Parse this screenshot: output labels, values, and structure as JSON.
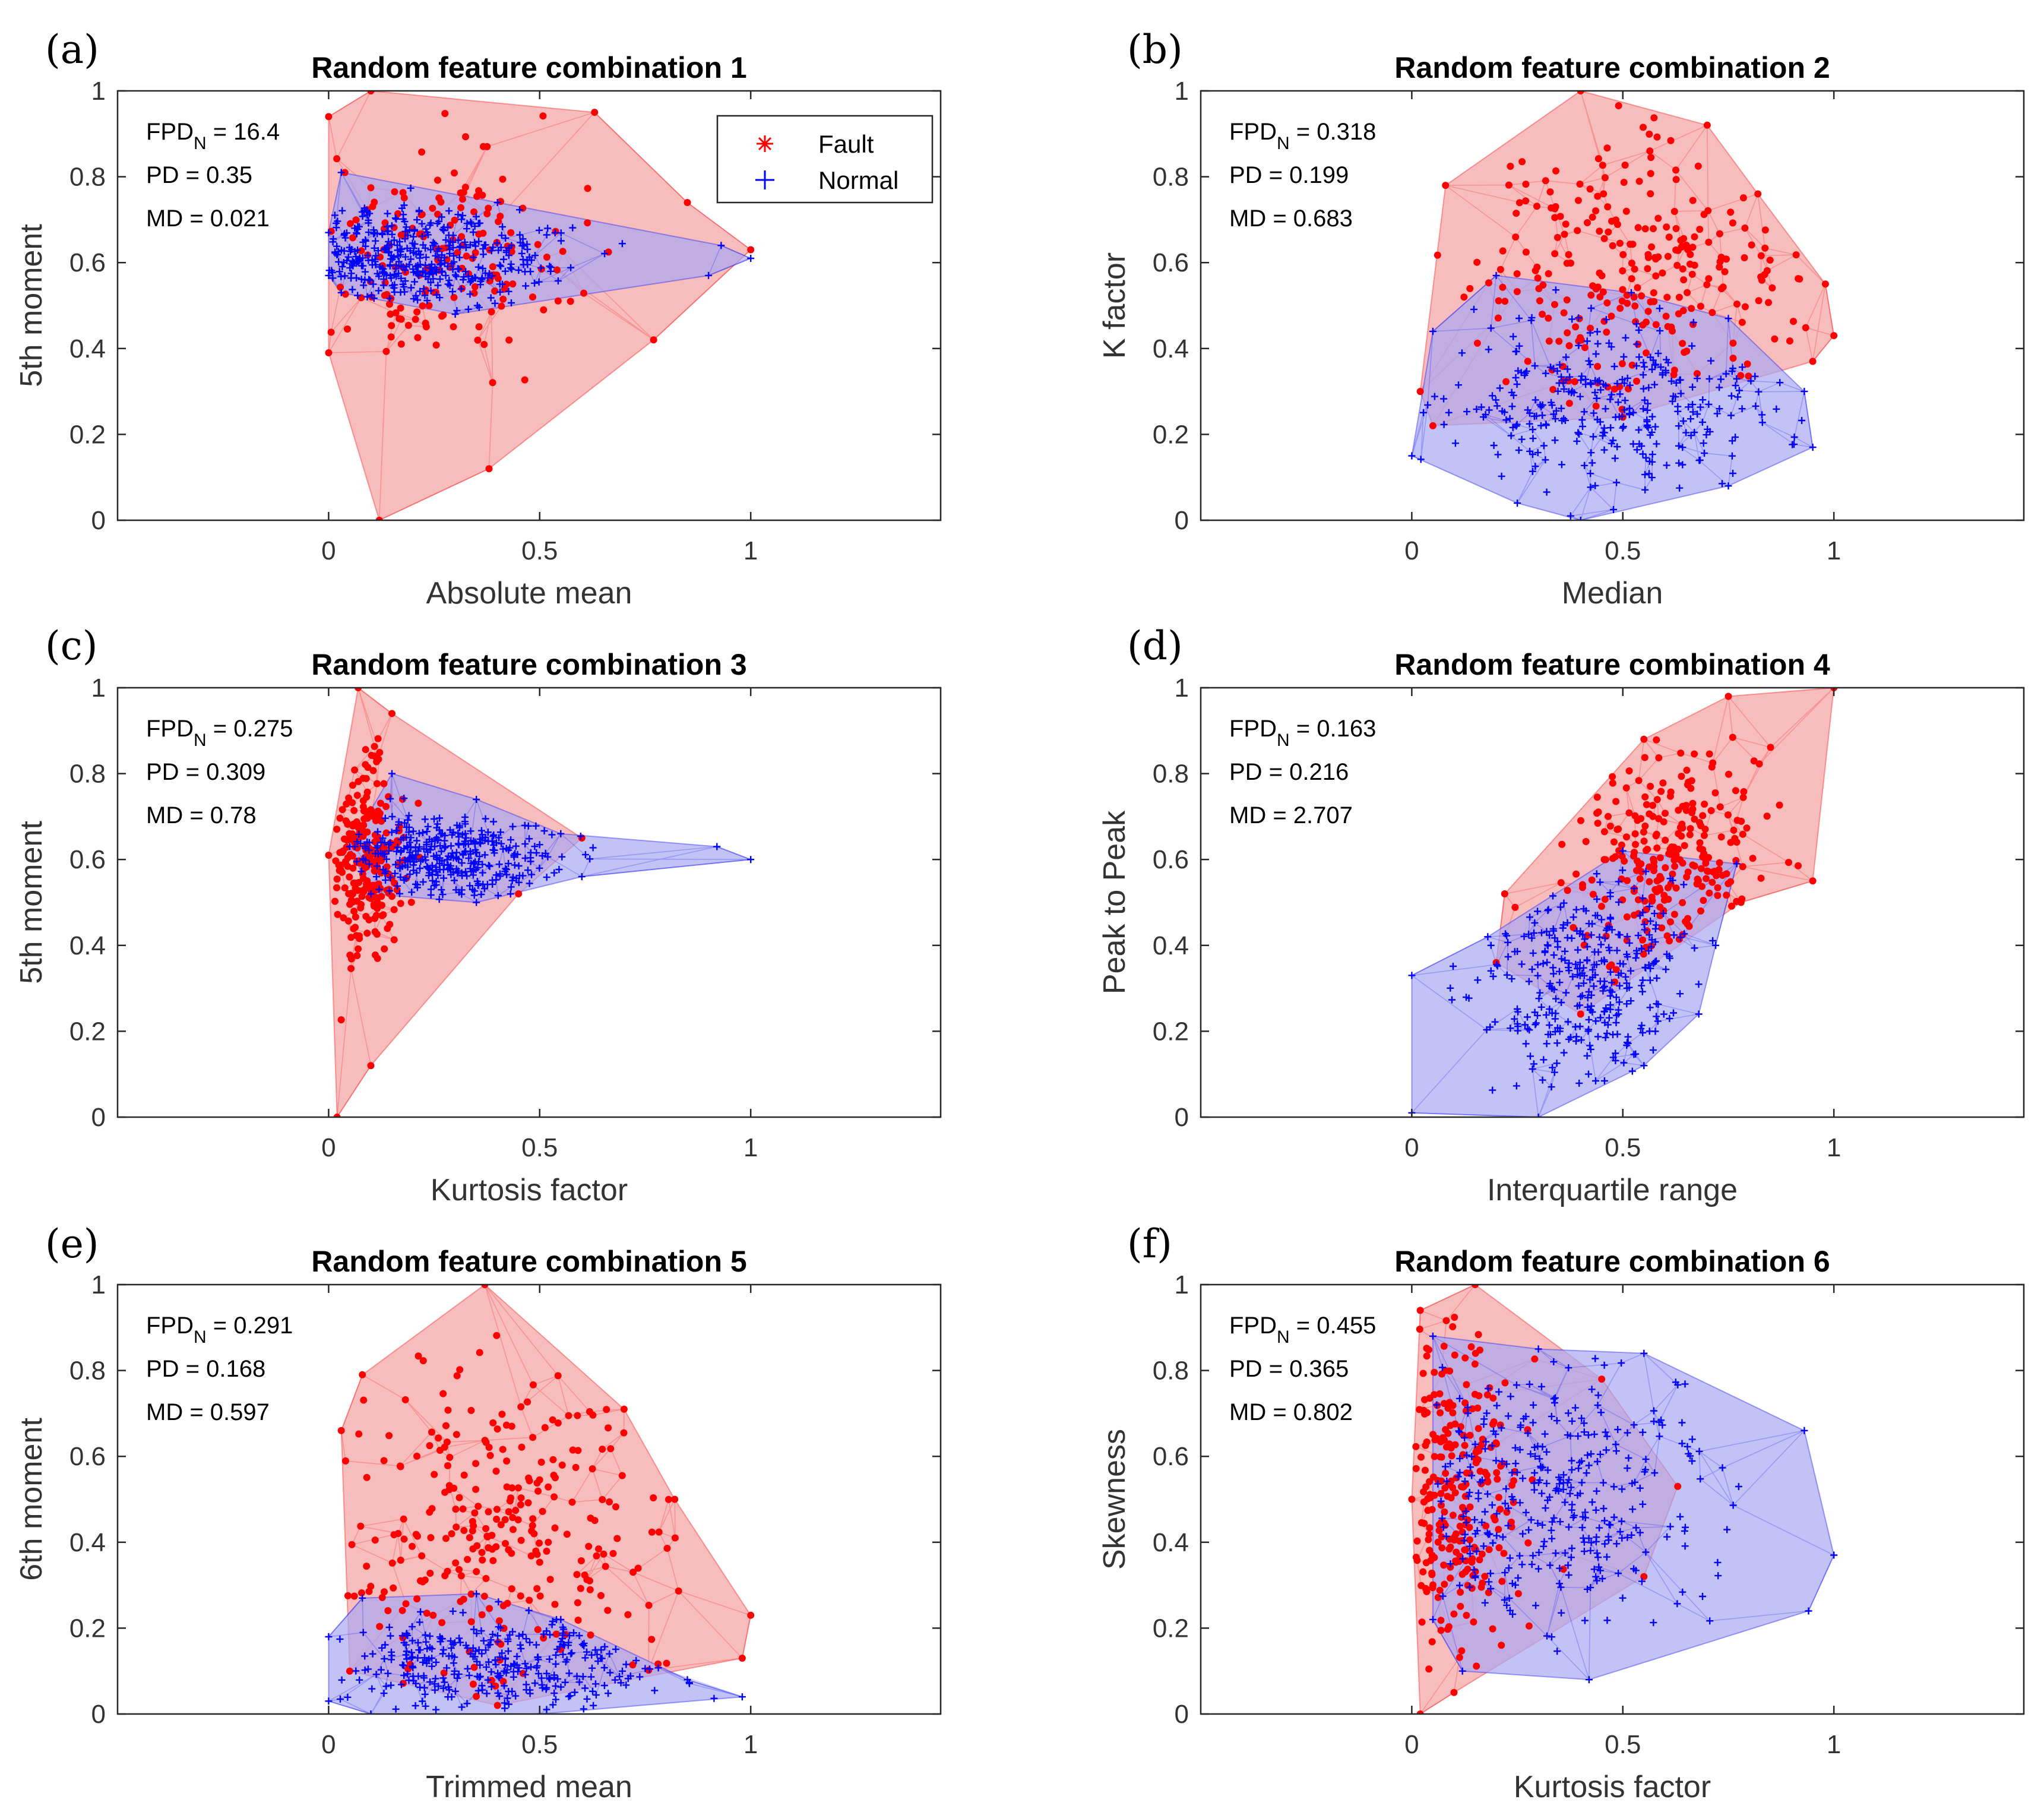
{
  "figure": {
    "colors": {
      "fault": "#ff0000",
      "normal": "#0000ff",
      "fault_fill": "#f4a6a6",
      "normal_fill": "#a8a8f2"
    }
  },
  "legend": {
    "fault": "Fault",
    "normal": "Normal"
  },
  "chart_data": [
    {
      "type": "scatter",
      "panel": "(a)",
      "title": "Random feature combination 1",
      "xlabel": "Absolute mean",
      "ylabel": "5th moment",
      "xlim": [
        -0.5,
        1.45
      ],
      "ylim": [
        0,
        1
      ],
      "xticks": [
        "0",
        "0.5",
        "1"
      ],
      "yticks": [
        "0",
        "0.2",
        "0.4",
        "0.6",
        "0.8",
        "1"
      ],
      "stats": {
        "fpd_label": "FPD",
        "fpd_sub": "N",
        "fpd_value": " = 16.4",
        "pd": "PD = 0.35",
        "md": "MD = 0.021"
      },
      "legend": true,
      "series": [
        {
          "name": "Fault",
          "center": [
            0.22,
            0.62
          ],
          "spread": [
            0.17,
            0.12
          ],
          "n": 170,
          "hull": [
            [
              0.0,
              0.94
            ],
            [
              0.1,
              1.0
            ],
            [
              0.63,
              0.95
            ],
            [
              0.85,
              0.74
            ],
            [
              1.0,
              0.63
            ],
            [
              0.77,
              0.42
            ],
            [
              0.38,
              0.12
            ],
            [
              0.12,
              0.0
            ],
            [
              0.0,
              0.39
            ]
          ]
        },
        {
          "name": "Normal",
          "center": [
            0.2,
            0.61
          ],
          "spread": [
            0.16,
            0.055
          ],
          "n": 420,
          "hull": [
            [
              0.0,
              0.67
            ],
            [
              0.03,
              0.81
            ],
            [
              0.4,
              0.74
            ],
            [
              0.93,
              0.64
            ],
            [
              1.0,
              0.61
            ],
            [
              0.9,
              0.57
            ],
            [
              0.3,
              0.48
            ],
            [
              0.03,
              0.53
            ],
            [
              0.0,
              0.57
            ]
          ]
        }
      ]
    },
    {
      "type": "scatter",
      "panel": "(b)",
      "title": "Random feature combination 2",
      "xlabel": "Median",
      "ylabel": "K factor",
      "xlim": [
        -0.5,
        1.45
      ],
      "ylim": [
        0,
        1
      ],
      "xticks": [
        "0",
        "0.5",
        "1"
      ],
      "yticks": [
        "0",
        "0.2",
        "0.4",
        "0.6",
        "0.8",
        "1"
      ],
      "stats": {
        "fpd_label": "FPD",
        "fpd_sub": "N",
        "fpd_value": " = 0.318",
        "pd": "PD = 0.199",
        "md": "MD = 0.683"
      },
      "legend": false,
      "series": [
        {
          "name": "Fault",
          "center": [
            0.5,
            0.55
          ],
          "spread": [
            0.2,
            0.16
          ],
          "n": 260,
          "hull": [
            [
              0.08,
              0.78
            ],
            [
              0.4,
              1.0
            ],
            [
              0.7,
              0.92
            ],
            [
              0.82,
              0.76
            ],
            [
              0.98,
              0.55
            ],
            [
              1.0,
              0.43
            ],
            [
              0.95,
              0.37
            ],
            [
              0.5,
              0.24
            ],
            [
              0.05,
              0.22
            ],
            [
              0.02,
              0.3
            ]
          ]
        },
        {
          "name": "Normal",
          "center": [
            0.45,
            0.28
          ],
          "spread": [
            0.22,
            0.1
          ],
          "n": 320,
          "hull": [
            [
              0.0,
              0.15
            ],
            [
              0.05,
              0.44
            ],
            [
              0.2,
              0.57
            ],
            [
              0.52,
              0.53
            ],
            [
              0.75,
              0.47
            ],
            [
              0.93,
              0.3
            ],
            [
              0.95,
              0.17
            ],
            [
              0.75,
              0.08
            ],
            [
              0.4,
              0.0
            ],
            [
              0.25,
              0.04
            ]
          ]
        }
      ]
    },
    {
      "type": "scatter",
      "panel": "(c)",
      "title": "Random feature combination 3",
      "xlabel": "Kurtosis factor",
      "ylabel": "5th moment",
      "xlim": [
        -0.5,
        1.45
      ],
      "ylim": [
        0,
        1
      ],
      "xticks": [
        "0",
        "0.5",
        "1"
      ],
      "yticks": [
        "0",
        "0.2",
        "0.4",
        "0.6",
        "0.8",
        "1"
      ],
      "stats": {
        "fpd_label": "FPD",
        "fpd_sub": "N",
        "fpd_value": " = 0.275",
        "pd": "PD = 0.309",
        "md": "MD = 0.78"
      },
      "legend": false,
      "series": [
        {
          "name": "Fault",
          "center": [
            0.09,
            0.61
          ],
          "spread": [
            0.04,
            0.11
          ],
          "n": 240,
          "hull": [
            [
              0.0,
              0.61
            ],
            [
              0.07,
              1.0
            ],
            [
              0.15,
              0.94
            ],
            [
              0.6,
              0.65
            ],
            [
              0.45,
              0.52
            ],
            [
              0.1,
              0.12
            ],
            [
              0.02,
              0.0
            ]
          ]
        },
        {
          "name": "Normal",
          "center": [
            0.28,
            0.6
          ],
          "spread": [
            0.15,
            0.05
          ],
          "n": 360,
          "hull": [
            [
              0.05,
              0.63
            ],
            [
              0.15,
              0.8
            ],
            [
              0.35,
              0.74
            ],
            [
              0.55,
              0.66
            ],
            [
              0.92,
              0.63
            ],
            [
              1.0,
              0.6
            ],
            [
              0.6,
              0.56
            ],
            [
              0.35,
              0.5
            ],
            [
              0.1,
              0.52
            ]
          ]
        }
      ]
    },
    {
      "type": "scatter",
      "panel": "(d)",
      "title": "Random feature combination 4",
      "xlabel": "Interquartile range",
      "ylabel": "Peak to Peak",
      "xlim": [
        -0.5,
        1.45
      ],
      "ylim": [
        0,
        1
      ],
      "xticks": [
        "0",
        "0.5",
        "1"
      ],
      "yticks": [
        "0",
        "0.2",
        "0.4",
        "0.6",
        "0.8",
        "1"
      ],
      "stats": {
        "fpd_label": "FPD",
        "fpd_sub": "N",
        "fpd_value": " = 0.163",
        "pd": "PD = 0.216",
        "md": "MD = 2.707"
      },
      "legend": false,
      "series": [
        {
          "name": "Fault",
          "center": [
            0.6,
            0.62
          ],
          "spread": [
            0.13,
            0.13
          ],
          "n": 260,
          "hull": [
            [
              0.2,
              0.36
            ],
            [
              0.22,
              0.52
            ],
            [
              0.55,
              0.88
            ],
            [
              0.75,
              0.98
            ],
            [
              1.0,
              1.0
            ],
            [
              0.95,
              0.55
            ],
            [
              0.78,
              0.5
            ],
            [
              0.4,
              0.24
            ]
          ]
        },
        {
          "name": "Normal",
          "center": [
            0.42,
            0.33
          ],
          "spread": [
            0.12,
            0.12
          ],
          "n": 340,
          "hull": [
            [
              0.0,
              0.33
            ],
            [
              0.18,
              0.42
            ],
            [
              0.5,
              0.62
            ],
            [
              0.77,
              0.59
            ],
            [
              0.72,
              0.4
            ],
            [
              0.68,
              0.24
            ],
            [
              0.55,
              0.12
            ],
            [
              0.3,
              0.0
            ],
            [
              0.0,
              0.01
            ]
          ]
        }
      ]
    },
    {
      "type": "scatter",
      "panel": "(e)",
      "title": "Random feature combination 5",
      "xlabel": "Trimmed mean",
      "ylabel": "6th moment",
      "xlim": [
        -0.5,
        1.45
      ],
      "ylim": [
        0,
        1
      ],
      "xticks": [
        "0",
        "0.5",
        "1"
      ],
      "yticks": [
        "0",
        "0.2",
        "0.4",
        "0.6",
        "0.8",
        "1"
      ],
      "stats": {
        "fpd_label": "FPD",
        "fpd_sub": "N",
        "fpd_value": " = 0.291",
        "pd": "PD = 0.168",
        "md": "MD = 0.597"
      },
      "legend": false,
      "series": [
        {
          "name": "Fault",
          "center": [
            0.42,
            0.42
          ],
          "spread": [
            0.2,
            0.2
          ],
          "n": 270,
          "hull": [
            [
              0.03,
              0.66
            ],
            [
              0.08,
              0.79
            ],
            [
              0.37,
              1.0
            ],
            [
              0.7,
              0.71
            ],
            [
              0.82,
              0.5
            ],
            [
              1.0,
              0.23
            ],
            [
              0.98,
              0.13
            ],
            [
              0.4,
              0.02
            ],
            [
              0.05,
              0.1
            ]
          ]
        },
        {
          "name": "Normal",
          "center": [
            0.4,
            0.11
          ],
          "spread": [
            0.2,
            0.06
          ],
          "n": 320,
          "hull": [
            [
              0.0,
              0.03
            ],
            [
              0.0,
              0.18
            ],
            [
              0.08,
              0.27
            ],
            [
              0.35,
              0.28
            ],
            [
              0.55,
              0.22
            ],
            [
              0.85,
              0.08
            ],
            [
              0.98,
              0.04
            ],
            [
              0.5,
              0.0
            ],
            [
              0.1,
              0.0
            ]
          ]
        }
      ]
    },
    {
      "type": "scatter",
      "panel": "(f)",
      "title": "Random feature combination 6",
      "xlabel": "Kurtosis factor",
      "ylabel": "Skewness",
      "xlim": [
        -0.5,
        1.45
      ],
      "ylim": [
        0,
        1
      ],
      "xticks": [
        "0",
        "0.5",
        "1"
      ],
      "yticks": [
        "0",
        "0.2",
        "0.4",
        "0.6",
        "0.8",
        "1"
      ],
      "stats": {
        "fpd_label": "FPD",
        "fpd_sub": "N",
        "fpd_value": " = 0.455",
        "pd": "PD = 0.365",
        "md": "MD = 0.802"
      },
      "legend": false,
      "series": [
        {
          "name": "Fault",
          "center": [
            0.1,
            0.5
          ],
          "spread": [
            0.08,
            0.18
          ],
          "n": 260,
          "hull": [
            [
              0.0,
              0.5
            ],
            [
              0.02,
              0.94
            ],
            [
              0.15,
              1.0
            ],
            [
              0.45,
              0.78
            ],
            [
              0.63,
              0.53
            ],
            [
              0.55,
              0.32
            ],
            [
              0.1,
              0.05
            ],
            [
              0.02,
              0.0
            ]
          ]
        },
        {
          "name": "Normal",
          "center": [
            0.32,
            0.5
          ],
          "spread": [
            0.2,
            0.15
          ],
          "n": 340,
          "hull": [
            [
              0.05,
              0.22
            ],
            [
              0.05,
              0.88
            ],
            [
              0.3,
              0.85
            ],
            [
              0.55,
              0.84
            ],
            [
              0.93,
              0.66
            ],
            [
              1.0,
              0.37
            ],
            [
              0.94,
              0.24
            ],
            [
              0.42,
              0.08
            ],
            [
              0.12,
              0.1
            ]
          ]
        }
      ]
    }
  ]
}
